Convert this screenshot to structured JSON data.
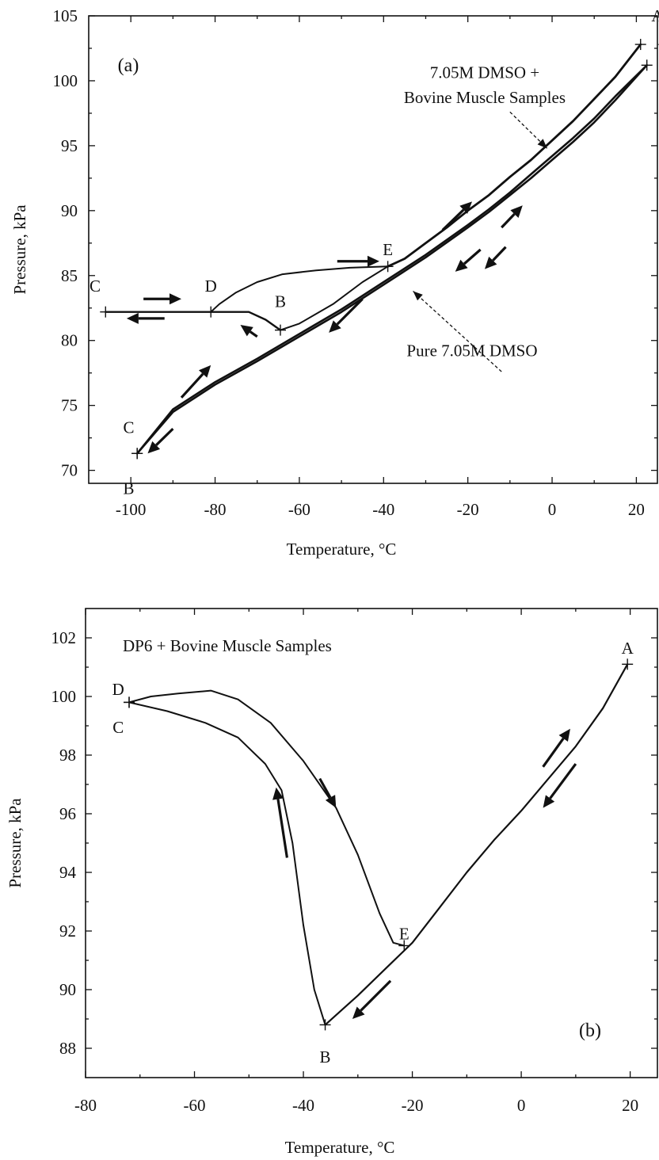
{
  "chart_data": [
    {
      "id": "a",
      "type": "line",
      "panel_label": "(a)",
      "xlabel": "Temperature, °C",
      "ylabel": "Pressure, kPa",
      "xlim": [
        -110,
        25
      ],
      "ylim": [
        69,
        105
      ],
      "xticks": [
        -100,
        -80,
        -60,
        -40,
        -20,
        0,
        20
      ],
      "yticks": [
        70,
        75,
        80,
        85,
        90,
        95,
        100,
        105
      ],
      "grid": false,
      "annotations": [
        {
          "text": "7.05M DMSO +",
          "x": -16,
          "y": 100.2
        },
        {
          "text": "Bovine Muscle Samples",
          "x": -16,
          "y": 98.3
        },
        {
          "text": "Pure 7.05M DMSO",
          "x": -19,
          "y": 78.8
        }
      ],
      "leaders": [
        {
          "from": [
            -10,
            97.6
          ],
          "to": [
            -1.2,
            94.8
          ]
        },
        {
          "from": [
            -12,
            77.6
          ],
          "to": [
            -33,
            83.8
          ]
        }
      ],
      "points": [
        {
          "label": "A",
          "x": 21,
          "y": 102.8,
          "dx": 4,
          "dy": 2.2
        },
        {
          "label": "A",
          "x": 22.5,
          "y": 101.2,
          "dx": 4,
          "dy": 2
        },
        {
          "label": "C",
          "x": -106,
          "y": 82.2,
          "dx": -2.5,
          "dy": 2
        },
        {
          "label": "D",
          "x": -81,
          "y": 82.2,
          "dx": 0,
          "dy": 2
        },
        {
          "label": "B",
          "x": -64.5,
          "y": 80.8,
          "dx": 0,
          "dy": 2.2
        },
        {
          "label": "E",
          "x": -39,
          "y": 85.7,
          "dx": 0,
          "dy": 1.3
        },
        {
          "label": "C",
          "x": -98.5,
          "y": 71.3,
          "dx": -2,
          "dy": 2
        },
        {
          "label": "B",
          "x": -98.5,
          "y": 71.3,
          "dx": -2,
          "dy": -2.7
        }
      ],
      "series": [
        {
          "width": 2.8,
          "points": [
            [
              21,
              102.8
            ],
            [
              15,
              100.3
            ],
            [
              10,
              98.6
            ],
            [
              5,
              96.9
            ],
            [
              0,
              95.4
            ],
            [
              -5,
              93.9
            ],
            [
              -10,
              92.6
            ],
            [
              -15,
              91.2
            ],
            [
              -20,
              90.0
            ],
            [
              -25,
              88.7
            ],
            [
              -30,
              87.5
            ],
            [
              -35,
              86.3
            ],
            [
              -39,
              85.7
            ]
          ]
        },
        {
          "width": 2.0,
          "points": [
            [
              -39,
              85.7
            ],
            [
              -48,
              85.6
            ],
            [
              -56,
              85.4
            ],
            [
              -64,
              85.1
            ],
            [
              -70,
              84.5
            ],
            [
              -75,
              83.7
            ],
            [
              -79,
              82.8
            ],
            [
              -81,
              82.2
            ]
          ]
        },
        {
          "width": 2.4,
          "points": [
            [
              -106,
              82.2
            ],
            [
              -81,
              82.2
            ]
          ]
        },
        {
          "width": 2.4,
          "points": [
            [
              -81,
              82.2
            ],
            [
              -72,
              82.2
            ],
            [
              -68,
              81.6
            ],
            [
              -64.5,
              80.8
            ]
          ]
        },
        {
          "width": 2.0,
          "points": [
            [
              -64.5,
              80.8
            ],
            [
              -60,
              81.3
            ],
            [
              -52,
              82.8
            ],
            [
              -45,
              84.5
            ],
            [
              -39,
              85.7
            ]
          ]
        },
        {
          "width": 2.6,
          "points": [
            [
              22.5,
              101.2
            ],
            [
              15,
              98.5
            ],
            [
              10,
              96.8
            ],
            [
              5,
              95.3
            ],
            [
              0,
              93.9
            ],
            [
              -5,
              92.5
            ],
            [
              -10,
              91.2
            ],
            [
              -15,
              89.9
            ],
            [
              -20,
              88.7
            ],
            [
              -30,
              86.4
            ],
            [
              -40,
              84.3
            ],
            [
              -50,
              82.2
            ],
            [
              -60,
              80.3
            ],
            [
              -70,
              78.4
            ],
            [
              -80,
              76.6
            ],
            [
              -90,
              74.5
            ],
            [
              -98.5,
              71.3
            ]
          ]
        },
        {
          "width": 2.6,
          "points": [
            [
              22.5,
              101.2
            ],
            [
              15,
              98.8
            ],
            [
              10,
              97.1
            ],
            [
              5,
              95.6
            ],
            [
              0,
              94.2
            ],
            [
              -5,
              92.8
            ],
            [
              -10,
              91.4
            ],
            [
              -15,
              90.1
            ],
            [
              -20,
              88.9
            ],
            [
              -30,
              86.6
            ],
            [
              -40,
              84.5
            ],
            [
              -50,
              82.4
            ],
            [
              -60,
              80.5
            ],
            [
              -70,
              78.6
            ],
            [
              -80,
              76.8
            ],
            [
              -90,
              74.7
            ],
            [
              -98.5,
              71.3
            ]
          ]
        }
      ],
      "arrows": [
        {
          "from": [
            -97,
            83.2
          ],
          "to": [
            -88,
            83.2
          ]
        },
        {
          "from": [
            -92,
            81.7
          ],
          "to": [
            -101,
            81.7
          ]
        },
        {
          "from": [
            -51,
            86.1
          ],
          "to": [
            -41,
            86.1
          ]
        },
        {
          "from": [
            -26,
            88.5
          ],
          "to": [
            -19,
            90.7
          ]
        },
        {
          "from": [
            -70,
            80.3
          ],
          "to": [
            -74,
            81.2
          ]
        },
        {
          "from": [
            -45,
            83.2
          ],
          "to": [
            -53,
            80.6
          ]
        },
        {
          "from": [
            -17,
            87.0
          ],
          "to": [
            -23,
            85.3
          ]
        },
        {
          "from": [
            -12,
            88.7
          ],
          "to": [
            -7,
            90.4
          ]
        },
        {
          "from": [
            -11,
            87.2
          ],
          "to": [
            -16,
            85.5
          ]
        },
        {
          "from": [
            -88,
            75.6
          ],
          "to": [
            -81,
            78.1
          ]
        },
        {
          "from": [
            -90,
            73.2
          ],
          "to": [
            -96,
            71.3
          ]
        }
      ]
    },
    {
      "id": "b",
      "type": "line",
      "panel_label": "(b)",
      "title": "DP6 + Bovine Muscle Samples",
      "xlabel": "Temperature, °C",
      "ylabel": "Pressure, kPa",
      "xlim": [
        -80,
        25
      ],
      "ylim": [
        87,
        103
      ],
      "xticks": [
        -80,
        -60,
        -40,
        -20,
        0,
        20
      ],
      "yticks": [
        88,
        90,
        92,
        94,
        96,
        98,
        100,
        102
      ],
      "grid": false,
      "points": [
        {
          "label": "A",
          "x": 19.5,
          "y": 101.1,
          "dx": 0,
          "dy": 0.55
        },
        {
          "label": "D",
          "x": -72,
          "y": 99.8,
          "dx": -2,
          "dy": 0.45
        },
        {
          "label": "C",
          "x": -72,
          "y": 99.8,
          "dx": -2,
          "dy": -0.85
        },
        {
          "label": "B",
          "x": -36,
          "y": 88.8,
          "dx": 0,
          "dy": -1.1
        },
        {
          "label": "E",
          "x": -21.5,
          "y": 91.5,
          "dx": 0,
          "dy": 0.4
        }
      ],
      "series": [
        {
          "width": 2.2,
          "points": [
            [
              19.5,
              101.1
            ],
            [
              15,
              99.6
            ],
            [
              10,
              98.3
            ],
            [
              5,
              97.2
            ],
            [
              0,
              96.1
            ],
            [
              -5,
              95.1
            ],
            [
              -10,
              94.0
            ],
            [
              -15,
              92.8
            ],
            [
              -20,
              91.6
            ],
            [
              -25,
              90.7
            ],
            [
              -30,
              89.8
            ],
            [
              -36,
              88.8
            ]
          ]
        },
        {
          "width": 2.0,
          "points": [
            [
              -36,
              88.8
            ],
            [
              -38,
              90.0
            ],
            [
              -40,
              92.2
            ],
            [
              -42,
              95.0
            ],
            [
              -44,
              96.8
            ],
            [
              -47,
              97.7
            ],
            [
              -52,
              98.6
            ],
            [
              -58,
              99.1
            ],
            [
              -65,
              99.5
            ],
            [
              -72,
              99.8
            ]
          ]
        },
        {
          "width": 2.0,
          "points": [
            [
              -72,
              99.8
            ],
            [
              -68,
              100.0
            ],
            [
              -63,
              100.1
            ],
            [
              -57,
              100.2
            ],
            [
              -52,
              99.9
            ],
            [
              -46,
              99.1
            ],
            [
              -40,
              97.8
            ],
            [
              -34,
              96.2
            ],
            [
              -30,
              94.6
            ],
            [
              -26,
              92.6
            ],
            [
              -23.5,
              91.6
            ],
            [
              -21.5,
              91.5
            ]
          ]
        }
      ],
      "arrows": [
        {
          "from": [
            -37,
            97.2
          ],
          "to": [
            -34,
            96.2
          ]
        },
        {
          "from": [
            -43,
            94.5
          ],
          "to": [
            -45,
            96.9
          ]
        },
        {
          "from": [
            4,
            97.6
          ],
          "to": [
            9,
            98.9
          ]
        },
        {
          "from": [
            10,
            97.7
          ],
          "to": [
            4,
            96.2
          ]
        },
        {
          "from": [
            -24,
            90.3
          ],
          "to": [
            -31,
            89.0
          ]
        }
      ]
    }
  ]
}
